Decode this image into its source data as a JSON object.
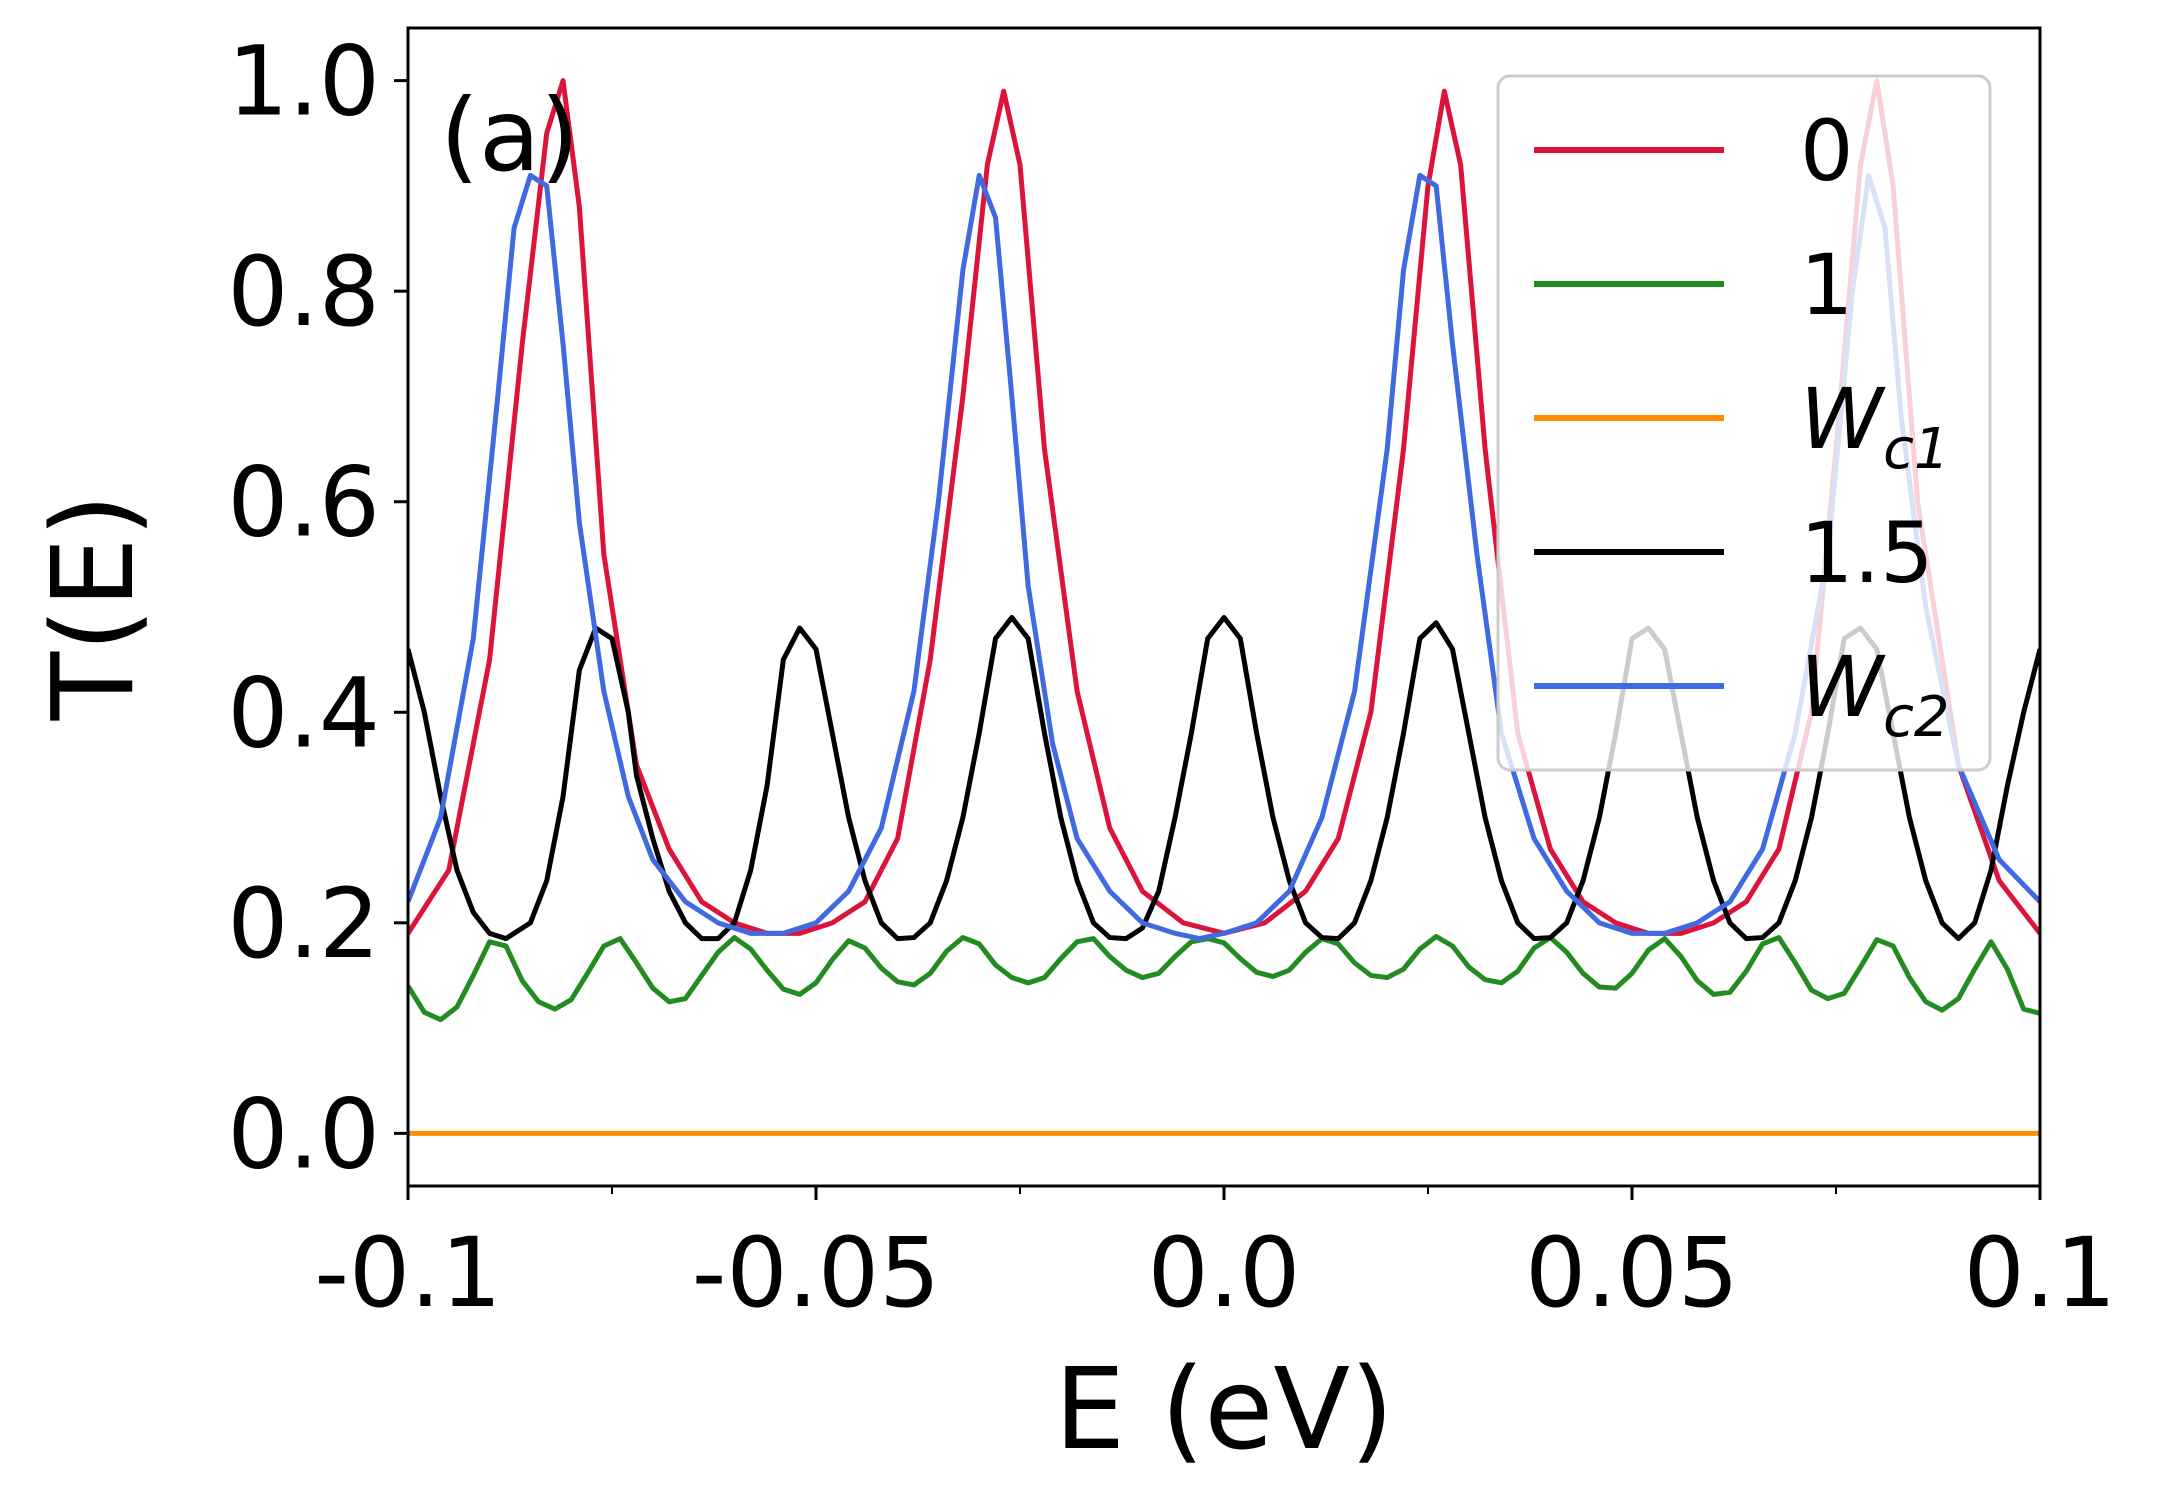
{
  "chart_data": {
    "type": "line",
    "panel_label": "(a)",
    "xlabel": "E (eV)",
    "ylabel": "T(E)",
    "xlim": [
      -0.1,
      0.1
    ],
    "ylim": [
      -0.05,
      1.05
    ],
    "x_ticks": [
      -0.1,
      -0.05,
      0.0,
      0.05,
      0.1
    ],
    "x_tick_labels": [
      "-0.1",
      "-0.05",
      "0.0",
      "0.05",
      "0.1"
    ],
    "y_ticks": [
      0.0,
      0.2,
      0.4,
      0.6,
      0.8,
      1.0
    ],
    "y_tick_labels": [
      "0.0",
      "0.2",
      "0.4",
      "0.6",
      "0.8",
      "1.0"
    ],
    "grid": false,
    "legend_position": "top-right",
    "series": [
      {
        "name": "0",
        "label_main": "0",
        "label_sub": "",
        "color": "#dc143c",
        "x": [
          -0.1,
          -0.095,
          -0.09,
          -0.086,
          -0.083,
          -0.081,
          -0.079,
          -0.076,
          -0.072,
          -0.068,
          -0.064,
          -0.06,
          -0.056,
          -0.052,
          -0.048,
          -0.044,
          -0.04,
          -0.036,
          -0.032,
          -0.029,
          -0.027,
          -0.025,
          -0.022,
          -0.018,
          -0.014,
          -0.01,
          -0.005,
          0.0,
          0.005,
          0.01,
          0.014,
          0.018,
          0.022,
          0.025,
          0.027,
          0.029,
          0.032,
          0.036,
          0.04,
          0.044,
          0.048,
          0.052,
          0.056,
          0.06,
          0.064,
          0.068,
          0.072,
          0.075,
          0.078,
          0.08,
          0.082,
          0.085,
          0.09,
          0.095,
          0.1
        ],
        "y": [
          0.19,
          0.25,
          0.45,
          0.75,
          0.95,
          1.0,
          0.88,
          0.55,
          0.35,
          0.27,
          0.22,
          0.2,
          0.19,
          0.19,
          0.2,
          0.22,
          0.28,
          0.45,
          0.7,
          0.92,
          0.99,
          0.92,
          0.65,
          0.42,
          0.29,
          0.23,
          0.2,
          0.19,
          0.2,
          0.23,
          0.28,
          0.4,
          0.65,
          0.9,
          0.99,
          0.92,
          0.65,
          0.38,
          0.27,
          0.22,
          0.2,
          0.19,
          0.19,
          0.2,
          0.22,
          0.27,
          0.4,
          0.65,
          0.92,
          1.0,
          0.9,
          0.6,
          0.35,
          0.24,
          0.19
        ]
      },
      {
        "name": "1",
        "label_main": "1",
        "label_sub": "",
        "color": "#228b22",
        "x": [
          -0.1,
          -0.098,
          -0.096,
          -0.094,
          -0.092,
          -0.09,
          -0.088,
          -0.086,
          -0.084,
          -0.082,
          -0.08,
          -0.078,
          -0.076,
          -0.074,
          -0.072,
          -0.07,
          -0.068,
          -0.066,
          -0.064,
          -0.062,
          -0.06,
          -0.058,
          -0.056,
          -0.054,
          -0.052,
          -0.05,
          -0.048,
          -0.046,
          -0.044,
          -0.042,
          -0.04,
          -0.038,
          -0.036,
          -0.034,
          -0.032,
          -0.03,
          -0.028,
          -0.026,
          -0.024,
          -0.022,
          -0.02,
          -0.018,
          -0.016,
          -0.014,
          -0.012,
          -0.01,
          -0.008,
          -0.006,
          -0.004,
          -0.002,
          0.0,
          0.002,
          0.004,
          0.006,
          0.008,
          0.01,
          0.012,
          0.014,
          0.016,
          0.018,
          0.02,
          0.022,
          0.024,
          0.026,
          0.028,
          0.03,
          0.032,
          0.034,
          0.036,
          0.038,
          0.04,
          0.042,
          0.044,
          0.046,
          0.048,
          0.05,
          0.052,
          0.054,
          0.056,
          0.058,
          0.06,
          0.062,
          0.064,
          0.066,
          0.068,
          0.07,
          0.072,
          0.074,
          0.076,
          0.078,
          0.08,
          0.082,
          0.084,
          0.086,
          0.088,
          0.09,
          0.092,
          0.094,
          0.096,
          0.098,
          0.1
        ],
        "y": [
          0.14,
          0.115,
          0.108,
          0.12,
          0.15,
          0.182,
          0.178,
          0.145,
          0.125,
          0.118,
          0.127,
          0.152,
          0.178,
          0.185,
          0.162,
          0.138,
          0.125,
          0.128,
          0.15,
          0.172,
          0.186,
          0.175,
          0.155,
          0.137,
          0.132,
          0.143,
          0.165,
          0.183,
          0.176,
          0.157,
          0.144,
          0.141,
          0.152,
          0.173,
          0.186,
          0.18,
          0.16,
          0.148,
          0.143,
          0.148,
          0.166,
          0.182,
          0.185,
          0.168,
          0.155,
          0.148,
          0.152,
          0.168,
          0.182,
          0.185,
          0.181,
          0.166,
          0.153,
          0.149,
          0.155,
          0.172,
          0.185,
          0.18,
          0.162,
          0.15,
          0.148,
          0.156,
          0.175,
          0.187,
          0.178,
          0.158,
          0.146,
          0.143,
          0.154,
          0.176,
          0.186,
          0.172,
          0.152,
          0.139,
          0.138,
          0.152,
          0.174,
          0.185,
          0.168,
          0.145,
          0.132,
          0.134,
          0.154,
          0.18,
          0.186,
          0.162,
          0.136,
          0.128,
          0.133,
          0.158,
          0.184,
          0.178,
          0.148,
          0.125,
          0.117,
          0.128,
          0.156,
          0.182,
          0.156,
          0.118,
          0.114
        ]
      },
      {
        "name": "Wc1",
        "label_main": "W",
        "label_sub": "c1",
        "color": "#ff8c00",
        "x": [
          -0.1,
          0.1
        ],
        "y": [
          0.0,
          0.0
        ]
      },
      {
        "name": "1.5",
        "label_main": "1.5",
        "label_sub": "",
        "color": "#000000",
        "x": [
          -0.1,
          -0.098,
          -0.096,
          -0.094,
          -0.092,
          -0.09,
          -0.088,
          -0.085,
          -0.083,
          -0.081,
          -0.079,
          -0.077,
          -0.075,
          -0.073,
          -0.072,
          -0.07,
          -0.068,
          -0.066,
          -0.064,
          -0.062,
          -0.06,
          -0.058,
          -0.056,
          -0.054,
          -0.052,
          -0.05,
          -0.048,
          -0.046,
          -0.044,
          -0.042,
          -0.04,
          -0.038,
          -0.036,
          -0.034,
          -0.032,
          -0.03,
          -0.028,
          -0.026,
          -0.024,
          -0.022,
          -0.02,
          -0.018,
          -0.016,
          -0.014,
          -0.012,
          -0.01,
          -0.008,
          -0.006,
          -0.004,
          -0.002,
          0.0,
          0.002,
          0.004,
          0.006,
          0.008,
          0.01,
          0.012,
          0.014,
          0.016,
          0.018,
          0.02,
          0.022,
          0.024,
          0.026,
          0.028,
          0.03,
          0.032,
          0.034,
          0.036,
          0.038,
          0.04,
          0.042,
          0.044,
          0.046,
          0.048,
          0.05,
          0.052,
          0.054,
          0.056,
          0.058,
          0.06,
          0.062,
          0.064,
          0.066,
          0.068,
          0.07,
          0.072,
          0.074,
          0.076,
          0.078,
          0.08,
          0.082,
          0.084,
          0.086,
          0.088,
          0.09,
          0.092,
          0.094,
          0.096,
          0.098,
          0.1
        ],
        "y": [
          0.46,
          0.4,
          0.32,
          0.25,
          0.21,
          0.19,
          0.185,
          0.2,
          0.24,
          0.32,
          0.44,
          0.48,
          0.47,
          0.4,
          0.34,
          0.28,
          0.23,
          0.2,
          0.185,
          0.185,
          0.2,
          0.25,
          0.33,
          0.45,
          0.48,
          0.46,
          0.38,
          0.3,
          0.24,
          0.2,
          0.185,
          0.186,
          0.2,
          0.24,
          0.3,
          0.38,
          0.47,
          0.49,
          0.47,
          0.38,
          0.3,
          0.24,
          0.2,
          0.186,
          0.185,
          0.195,
          0.23,
          0.3,
          0.38,
          0.47,
          0.49,
          0.47,
          0.38,
          0.3,
          0.24,
          0.2,
          0.186,
          0.185,
          0.2,
          0.24,
          0.3,
          0.38,
          0.47,
          0.485,
          0.46,
          0.38,
          0.3,
          0.24,
          0.2,
          0.185,
          0.186,
          0.2,
          0.24,
          0.3,
          0.38,
          0.47,
          0.48,
          0.46,
          0.38,
          0.3,
          0.24,
          0.2,
          0.185,
          0.186,
          0.2,
          0.24,
          0.3,
          0.38,
          0.47,
          0.48,
          0.46,
          0.38,
          0.3,
          0.24,
          0.2,
          0.185,
          0.2,
          0.25,
          0.33,
          0.4,
          0.46
        ]
      },
      {
        "name": "Wc2",
        "label_main": "W",
        "label_sub": "c2",
        "color": "#4169e1",
        "x": [
          -0.1,
          -0.096,
          -0.092,
          -0.089,
          -0.087,
          -0.085,
          -0.083,
          -0.081,
          -0.079,
          -0.076,
          -0.073,
          -0.07,
          -0.066,
          -0.062,
          -0.058,
          -0.054,
          -0.05,
          -0.046,
          -0.042,
          -0.038,
          -0.035,
          -0.032,
          -0.03,
          -0.028,
          -0.026,
          -0.024,
          -0.021,
          -0.018,
          -0.014,
          -0.01,
          -0.006,
          -0.003,
          0.0,
          0.004,
          0.008,
          0.012,
          0.016,
          0.02,
          0.022,
          0.024,
          0.026,
          0.028,
          0.031,
          0.034,
          0.038,
          0.042,
          0.046,
          0.05,
          0.054,
          0.058,
          0.062,
          0.066,
          0.07,
          0.074,
          0.077,
          0.079,
          0.081,
          0.083,
          0.086,
          0.09,
          0.095,
          0.1
        ],
        "y": [
          0.22,
          0.3,
          0.47,
          0.7,
          0.86,
          0.91,
          0.9,
          0.75,
          0.58,
          0.42,
          0.32,
          0.26,
          0.22,
          0.2,
          0.19,
          0.19,
          0.2,
          0.23,
          0.29,
          0.42,
          0.6,
          0.82,
          0.91,
          0.87,
          0.7,
          0.52,
          0.37,
          0.28,
          0.23,
          0.2,
          0.19,
          0.185,
          0.19,
          0.2,
          0.23,
          0.3,
          0.42,
          0.65,
          0.82,
          0.91,
          0.9,
          0.75,
          0.55,
          0.38,
          0.28,
          0.23,
          0.2,
          0.19,
          0.19,
          0.2,
          0.22,
          0.27,
          0.38,
          0.55,
          0.8,
          0.91,
          0.86,
          0.68,
          0.5,
          0.35,
          0.26,
          0.22
        ]
      }
    ]
  }
}
